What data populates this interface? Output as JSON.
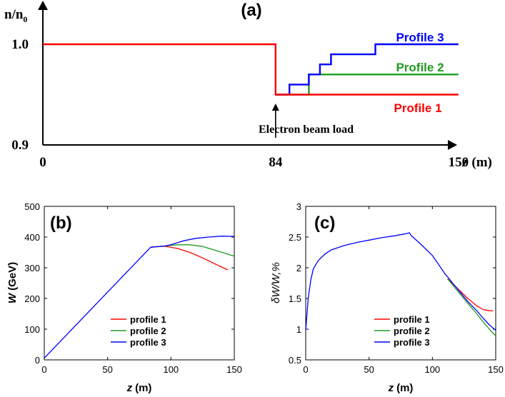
{
  "panel_a": {
    "panel_label": "(a)",
    "ylabel_main": "n/n",
    "ylabel_sub": "0",
    "xlabel_italic": "z",
    "xlabel_unit": "(m)",
    "annotation": "Electron beam load",
    "colors": {
      "profile1": "#ff0000",
      "profile2": "#1f9a1f",
      "profile3": "#0000ff"
    }
  },
  "panel_b": {
    "panel_label": "(b)",
    "ylabel_italic": "W",
    "ylabel_unit": "(GeV)",
    "xlabel_italic": "z",
    "xlabel_unit": "(m)"
  },
  "panel_c": {
    "panel_label": "(c)",
    "ylabel": "δW/W,%",
    "xlabel_italic": "z",
    "xlabel_unit": "(m)"
  },
  "chart_data": [
    {
      "type": "line",
      "title": "(a)",
      "xlabel": "z (m)",
      "ylabel": "n/n0",
      "xlim": [
        0,
        165
      ],
      "ylim": [
        0.9,
        1.02
      ],
      "x_ticks": [
        "0",
        "84",
        "150"
      ],
      "y_ticks": [
        "0.9",
        "1.0"
      ],
      "series": [
        {
          "name": "Profile 1",
          "color": "#ff0000",
          "x": [
            0,
            84,
            84,
            150
          ],
          "y": [
            1.0,
            1.0,
            0.95,
            0.95
          ]
        },
        {
          "name": "Profile 2",
          "color": "#1f9a1f",
          "x": [
            84,
            96,
            96,
            150
          ],
          "y": [
            0.95,
            0.95,
            0.97,
            0.97
          ]
        },
        {
          "name": "Profile 3",
          "color": "#0000ff",
          "x": [
            84,
            89,
            89,
            96,
            96,
            100,
            100,
            104,
            104,
            108,
            108,
            120,
            120,
            150
          ],
          "y": [
            0.95,
            0.95,
            0.96,
            0.96,
            0.97,
            0.97,
            0.98,
            0.98,
            0.99,
            0.99,
            0.99,
            0.99,
            1.0,
            1.0
          ]
        }
      ],
      "annotations": [
        {
          "text": "Electron beam load",
          "x": 84
        }
      ]
    },
    {
      "type": "line",
      "title": "(b)",
      "xlabel": "z (m)",
      "ylabel": "W (GeV)",
      "xlim": [
        0,
        150
      ],
      "ylim": [
        0,
        500
      ],
      "x_ticks": [
        "0",
        "50",
        "100",
        "150"
      ],
      "y_ticks": [
        "0",
        "100",
        "200",
        "300",
        "400",
        "500"
      ],
      "legend_position": "bottom-center",
      "series": [
        {
          "name": "profile 1",
          "color": "#ff0000",
          "x": [
            84,
            95,
            105,
            115,
            125,
            135,
            145
          ],
          "y": [
            367,
            370,
            363,
            350,
            332,
            312,
            293
          ]
        },
        {
          "name": "profile 2",
          "color": "#1f9a1f",
          "x": [
            84,
            95,
            105,
            115,
            125,
            135,
            150
          ],
          "y": [
            367,
            371,
            375,
            375,
            369,
            357,
            338
          ]
        },
        {
          "name": "profile 3",
          "color": "#0000ff",
          "x": [
            0,
            84,
            95,
            100,
            110,
            120,
            130,
            140,
            150
          ],
          "y": [
            6,
            367,
            371,
            375,
            388,
            396,
            400,
            403,
            402
          ]
        }
      ]
    },
    {
      "type": "line",
      "title": "(c)",
      "xlabel": "z (m)",
      "ylabel": "δW/W,%",
      "xlim": [
        0,
        150
      ],
      "ylim": [
        0.5,
        3
      ],
      "x_ticks": [
        "0",
        "50",
        "100",
        "150"
      ],
      "y_ticks": [
        "0.5",
        "1",
        "1.5",
        "2",
        "2.5",
        "3"
      ],
      "legend_position": "bottom-center",
      "series": [
        {
          "name": "profile 1",
          "color": "#ff0000",
          "x": [
            112,
            120,
            128,
            135,
            140,
            145,
            148
          ],
          "y": [
            1.82,
            1.66,
            1.5,
            1.38,
            1.32,
            1.3,
            1.3
          ]
        },
        {
          "name": "profile 2",
          "color": "#1f9a1f",
          "x": [
            112,
            120,
            128,
            135,
            140,
            145,
            150
          ],
          "y": [
            1.82,
            1.62,
            1.42,
            1.25,
            1.12,
            1.0,
            0.89
          ]
        },
        {
          "name": "profile 3",
          "color": "#0000ff",
          "x": [
            0,
            1,
            2,
            4,
            6,
            10,
            15,
            20,
            30,
            40,
            50,
            60,
            70,
            78,
            82,
            83,
            90,
            100,
            110,
            120,
            128,
            135,
            140,
            145,
            150
          ],
          "y": [
            0.98,
            1.25,
            1.5,
            1.8,
            1.98,
            2.12,
            2.22,
            2.29,
            2.36,
            2.41,
            2.45,
            2.49,
            2.52,
            2.55,
            2.57,
            2.53,
            2.4,
            2.2,
            1.9,
            1.65,
            1.45,
            1.3,
            1.18,
            1.07,
            0.98
          ]
        }
      ]
    }
  ]
}
